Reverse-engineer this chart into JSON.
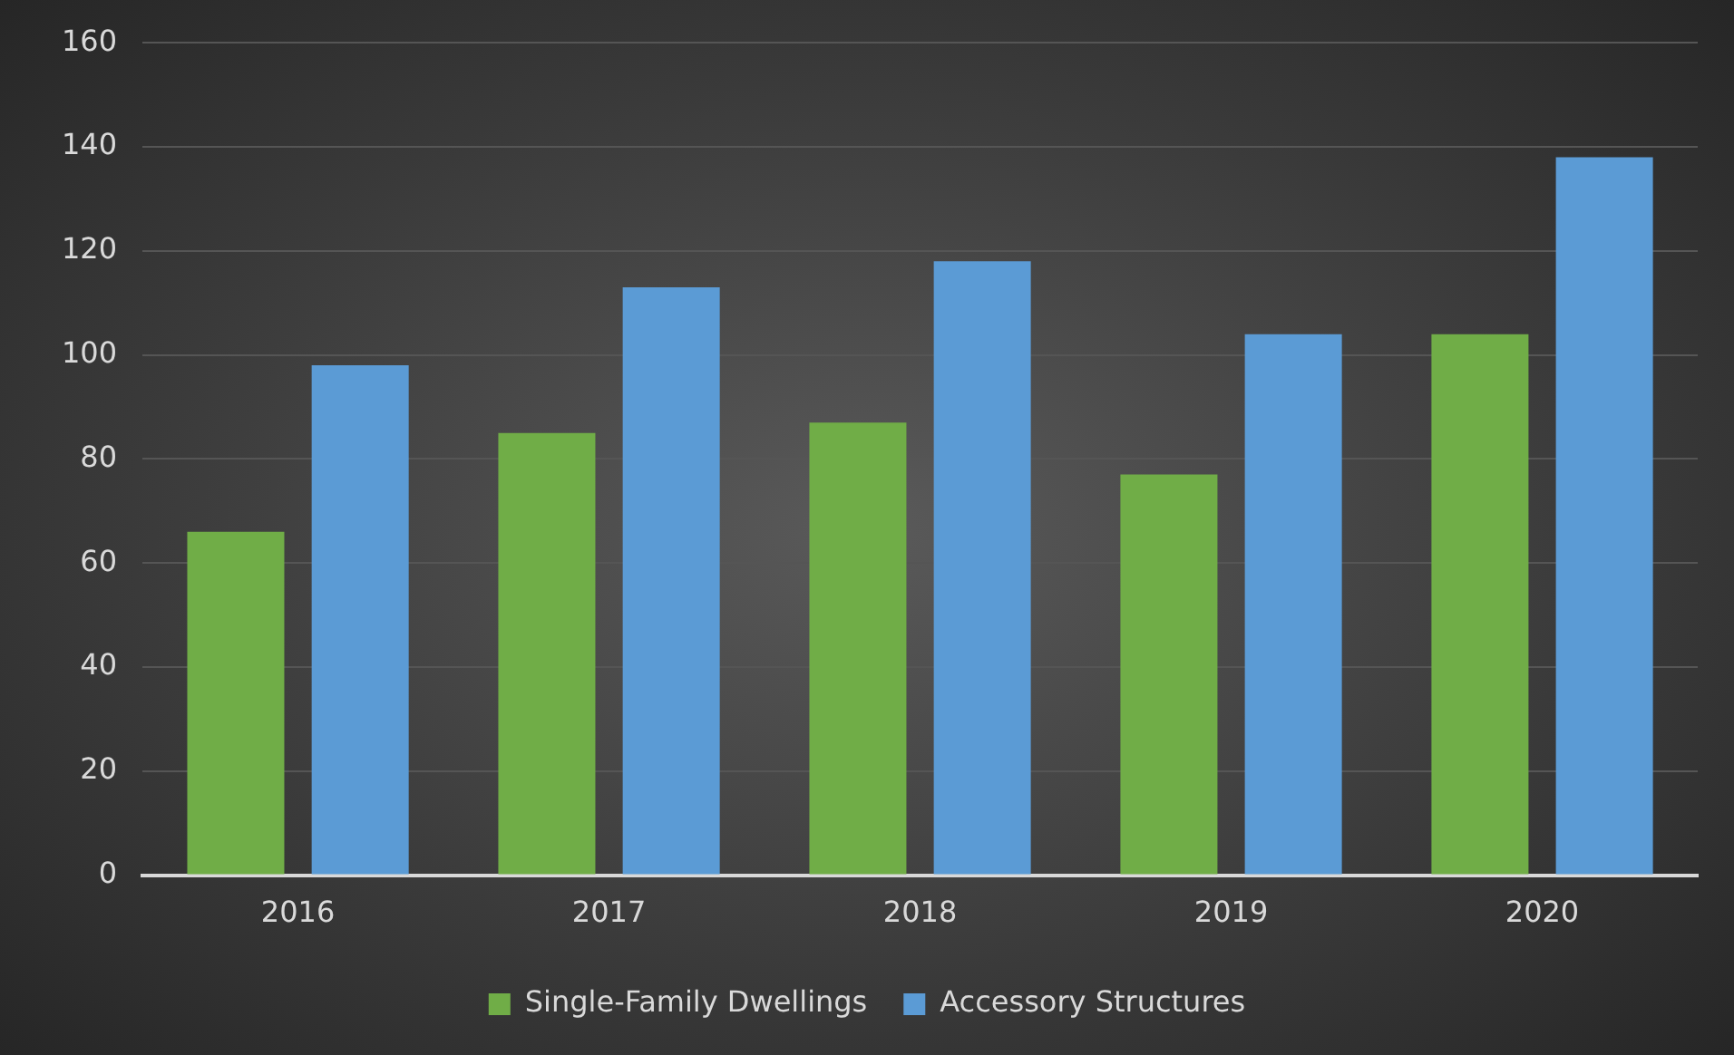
{
  "chart_data": {
    "type": "bar",
    "categories": [
      "2016",
      "2017",
      "2018",
      "2019",
      "2020"
    ],
    "series": [
      {
        "name": "Single-Family Dwellings",
        "color": "#70ad47",
        "values": [
          66,
          85,
          87,
          77,
          104
        ]
      },
      {
        "name": "Accessory Structures",
        "color": "#5b9bd5",
        "values": [
          98,
          113,
          118,
          104,
          138
        ]
      }
    ],
    "ylim": [
      0,
      160
    ],
    "yticks": [
      0,
      20,
      40,
      60,
      80,
      100,
      120,
      140,
      160
    ],
    "grid": "y",
    "legend": "bottom"
  }
}
